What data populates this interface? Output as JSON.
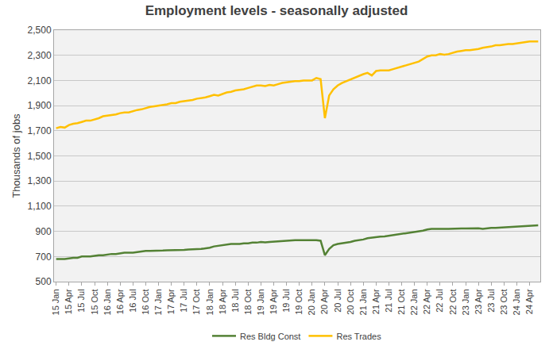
{
  "chart_data": {
    "type": "line",
    "title": "Employment levels - seasonally adjusted",
    "y_label": "Thousands of jobs",
    "categories": [
      "15 Jan",
      null,
      null,
      "15 Apr",
      null,
      null,
      "15 Jul",
      null,
      null,
      "15 Oct",
      null,
      null,
      "16 Jan",
      null,
      null,
      "16 Apr",
      null,
      null,
      "16 Jul",
      null,
      null,
      "16 Oct",
      null,
      null,
      "17 Jan",
      null,
      null,
      "17 Apr",
      null,
      null,
      "17 Jul",
      null,
      null,
      "17 Oct",
      null,
      null,
      "18 Jan",
      null,
      null,
      "18 Apr",
      null,
      null,
      "18 Jul",
      null,
      null,
      "18 Oct",
      null,
      null,
      "19 Jan",
      null,
      null,
      "19 Apr",
      null,
      null,
      "19 Jul",
      null,
      null,
      "19 Oct",
      null,
      null,
      "20 Jan",
      null,
      null,
      "20 Apr",
      null,
      null,
      "20 Jul",
      null,
      null,
      "20 Oct",
      null,
      null,
      "21 Jan",
      null,
      null,
      "21 Apr",
      null,
      null,
      "21 Jul",
      null,
      null,
      "21 Oct",
      null,
      null,
      "22 Jan",
      null,
      null,
      "22 Apr",
      null,
      null,
      "22 Jul",
      null,
      null,
      "22 Oct",
      null,
      null,
      "23 Jan",
      null,
      null,
      "23 Apr",
      null,
      null,
      "23 Jul",
      null,
      null,
      "23 Oct",
      null,
      null,
      "24 Jan",
      null,
      null,
      "24 Apr",
      null,
      null
    ],
    "series": [
      {
        "name": "Res Bldg Const",
        "color": "#548235",
        "values": [
          680,
          680,
          680,
          685,
          690,
          690,
          700,
          700,
          700,
          705,
          710,
          710,
          715,
          720,
          720,
          725,
          730,
          730,
          730,
          735,
          740,
          745,
          745,
          745,
          745,
          748,
          750,
          750,
          750,
          752,
          752,
          755,
          755,
          758,
          760,
          765,
          770,
          780,
          785,
          790,
          795,
          800,
          800,
          800,
          805,
          805,
          810,
          810,
          815,
          812,
          815,
          818,
          820,
          820,
          825,
          828,
          830,
          830,
          830,
          830,
          830,
          830,
          825,
          710,
          760,
          790,
          800,
          805,
          810,
          815,
          825,
          830,
          835,
          845,
          850,
          855,
          858,
          860,
          865,
          870,
          875,
          880,
          885,
          890,
          895,
          900,
          905,
          915,
          920,
          920,
          918,
          920,
          920,
          922,
          922,
          922,
          922,
          924,
          925,
          925,
          920,
          925,
          928,
          928,
          930,
          930,
          932,
          935,
          938,
          940,
          942,
          944,
          945,
          948
        ]
      },
      {
        "name": "Res Trades",
        "color": "#ffc000",
        "values": [
          1720,
          1730,
          1725,
          1745,
          1755,
          1760,
          1770,
          1780,
          1780,
          1790,
          1800,
          1815,
          1820,
          1825,
          1830,
          1840,
          1845,
          1845,
          1855,
          1865,
          1870,
          1880,
          1890,
          1895,
          1900,
          1905,
          1910,
          1920,
          1920,
          1930,
          1935,
          1940,
          1945,
          1955,
          1960,
          1965,
          1975,
          1985,
          1980,
          1995,
          2005,
          2010,
          2020,
          2025,
          2030,
          2040,
          2050,
          2060,
          2060,
          2055,
          2065,
          2060,
          2070,
          2080,
          2085,
          2090,
          2095,
          2095,
          2100,
          2100,
          2100,
          2120,
          2110,
          1800,
          1980,
          2030,
          2060,
          2080,
          2095,
          2110,
          2120,
          2135,
          2150,
          2160,
          2140,
          2175,
          2180,
          2180,
          2180,
          2190,
          2200,
          2210,
          2220,
          2230,
          2240,
          2250,
          2270,
          2290,
          2300,
          2300,
          2310,
          2305,
          2310,
          2320,
          2330,
          2335,
          2340,
          2340,
          2345,
          2350,
          2360,
          2365,
          2370,
          2380,
          2380,
          2385,
          2390,
          2390,
          2395,
          2400,
          2405,
          2410,
          2410,
          2410
        ]
      }
    ],
    "ylim": [
      500,
      2500
    ],
    "yticks": [
      500,
      700,
      900,
      {
        "value": 1100,
        "label": "1,100"
      },
      {
        "value": 1300,
        "label": "1,300"
      },
      {
        "value": 1500,
        "label": "1,500"
      },
      {
        "value": 1700,
        "label": "1,700"
      },
      {
        "value": 1900,
        "label": "1,900"
      },
      {
        "value": 2100,
        "label": "2,100"
      },
      {
        "value": 2300,
        "label": "2,300"
      },
      {
        "value": 2500,
        "label": "2,500"
      }
    ],
    "grid": true,
    "legend": "bottom"
  }
}
